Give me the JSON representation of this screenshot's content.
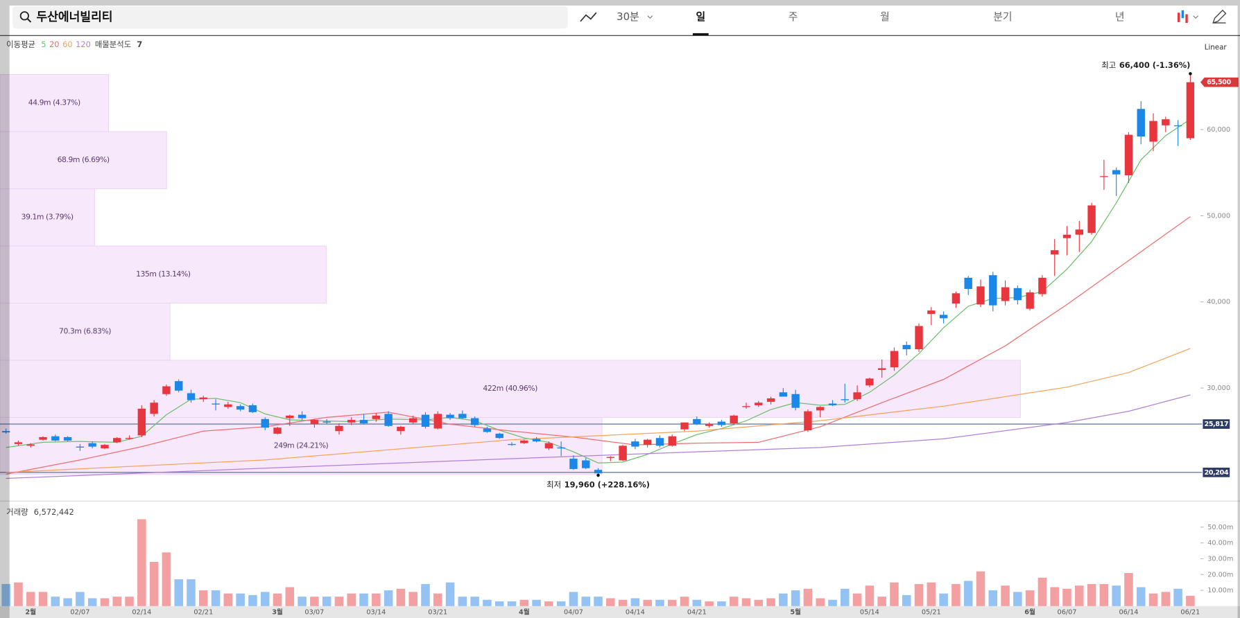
{
  "toolbar": {
    "search": "두산에너빌리티",
    "interval": "30분",
    "tabs": [
      "일",
      "주",
      "월",
      "분기",
      "년"
    ],
    "active_tab": 0
  },
  "chart_data": {
    "type": "candlestick",
    "scale_mode": "Linear",
    "ylim": [
      17064,
      70826
    ],
    "yticks": [
      {
        "value": 30000,
        "label": "30,000"
      },
      {
        "value": 40000,
        "label": "40,000"
      },
      {
        "value": 50000,
        "label": "50,000"
      },
      {
        "value": 60000,
        "label": "60,000"
      }
    ],
    "grid": false,
    "up_color": "#e8363f",
    "down_color": "#1b87e6",
    "categories": [
      null,
      null,
      "2월",
      null,
      null,
      null,
      "02/07",
      null,
      null,
      null,
      null,
      "02/14",
      null,
      null,
      null,
      null,
      "02/21",
      null,
      null,
      null,
      null,
      null,
      "3월",
      null,
      null,
      "03/07",
      null,
      null,
      null,
      null,
      "03/14",
      null,
      null,
      null,
      null,
      "03/21",
      null,
      null,
      null,
      null,
      null,
      null,
      "4월",
      null,
      null,
      null,
      "04/07",
      null,
      null,
      null,
      null,
      "04/14",
      null,
      null,
      null,
      null,
      "04/21",
      null,
      null,
      null,
      null,
      null,
      null,
      null,
      "5월",
      null,
      null,
      null,
      null,
      null,
      "05/14",
      null,
      null,
      null,
      null,
      "05/21",
      null,
      null,
      null,
      null,
      null,
      null,
      null,
      "6월",
      null,
      null,
      "06/07",
      null,
      null,
      null,
      null,
      "06/14",
      null,
      null,
      null,
      null,
      "06/21"
    ],
    "open": [
      25000,
      23500,
      23300,
      24000,
      24400,
      24300,
      23200,
      23600,
      23000,
      23700,
      24100,
      24500,
      27000,
      29300,
      30800,
      29400,
      28700,
      28200,
      27800,
      27900,
      28000,
      26400,
      24700,
      26500,
      26900,
      25800,
      26100,
      25000,
      26000,
      26300,
      26400,
      27000,
      25000,
      26000,
      26900,
      25300,
      26900,
      27000,
      26500,
      25300,
      24700,
      23500,
      23600,
      24100,
      23000,
      23100,
      21800,
      21600,
      20500,
      21900,
      21600,
      23800,
      23400,
      24200,
      23300,
      25200,
      26400,
      25600,
      26100,
      25900,
      27800,
      28000,
      28400,
      29500,
      29300,
      25100,
      27400,
      28200,
      28700,
      28700,
      30300,
      32100,
      32400,
      35000,
      34500,
      38600,
      38500,
      39800,
      42800,
      39700,
      43100,
      40100,
      41600,
      39200,
      40900,
      45500,
      47400,
      47800,
      48000,
      54500,
      55300,
      54700,
      62400,
      58600,
      60500,
      60500,
      59000
    ],
    "high": [
      25300,
      23900,
      23600,
      24400,
      24600,
      24400,
      23500,
      23800,
      23500,
      24300,
      24500,
      28000,
      28600,
      30400,
      31000,
      29800,
      29100,
      28700,
      28400,
      28100,
      28200,
      26600,
      25500,
      26900,
      27300,
      26400,
      26400,
      25900,
      26600,
      27000,
      27100,
      27300,
      25600,
      26800,
      27200,
      27300,
      27100,
      27400,
      26700,
      25500,
      24800,
      23700,
      24000,
      24300,
      23800,
      23800,
      22200,
      21900,
      20700,
      22100,
      23400,
      24100,
      24100,
      24500,
      24600,
      26000,
      26700,
      26000,
      26300,
      26900,
      28300,
      28500,
      29000,
      30000,
      29800,
      27500,
      27900,
      28600,
      30500,
      30300,
      31200,
      33300,
      34700,
      35400,
      37500,
      39400,
      38900,
      41200,
      43000,
      42600,
      43500,
      42500,
      41900,
      41400,
      43100,
      47300,
      48800,
      49400,
      51500,
      56500,
      55600,
      59700,
      63300,
      61900,
      61500,
      61100,
      66400
    ],
    "low": [
      24700,
      23300,
      23100,
      23900,
      23800,
      23800,
      22700,
      23000,
      22900,
      23600,
      24000,
      24300,
      26700,
      29100,
      29500,
      28300,
      28400,
      27400,
      27600,
      27300,
      27100,
      25100,
      24600,
      25600,
      26300,
      25400,
      25800,
      24600,
      25700,
      25800,
      26100,
      25500,
      24600,
      25800,
      25300,
      25200,
      26300,
      26400,
      25500,
      24800,
      24100,
      23300,
      23500,
      23700,
      22800,
      22100,
      20500,
      20600,
      19960,
      21500,
      21500,
      22900,
      23100,
      23100,
      23200,
      25000,
      25700,
      25400,
      25500,
      25700,
      27600,
      27800,
      28100,
      29000,
      27400,
      24900,
      26600,
      27900,
      28300,
      28500,
      30100,
      31200,
      32000,
      33800,
      34200,
      37300,
      37500,
      39300,
      40800,
      39400,
      38900,
      39600,
      39700,
      39000,
      40600,
      43000,
      45400,
      45800,
      47800,
      53000,
      52300,
      53800,
      58300,
      57500,
      59700,
      58100,
      58800
    ],
    "close": [
      24850,
      23700,
      23450,
      24300,
      23900,
      23900,
      23150,
      23200,
      23400,
      24200,
      24200,
      27600,
      28300,
      30200,
      29700,
      28600,
      28900,
      28100,
      28100,
      27500,
      27200,
      25400,
      25400,
      26800,
      26500,
      26300,
      26050,
      25600,
      26300,
      25900,
      26800,
      25600,
      25500,
      26500,
      25500,
      27000,
      26500,
      26500,
      25700,
      24900,
      24200,
      23450,
      23900,
      23800,
      23600,
      23050,
      20600,
      20700,
      20100,
      22000,
      23300,
      23200,
      24000,
      23300,
      24400,
      26000,
      25800,
      25800,
      25700,
      26800,
      27900,
      28300,
      28800,
      29000,
      27700,
      27300,
      27800,
      28000,
      28600,
      29500,
      31100,
      32300,
      34300,
      34500,
      37200,
      39000,
      38100,
      41000,
      41500,
      41800,
      39600,
      41700,
      40200,
      41100,
      42800,
      46000,
      47800,
      48400,
      51200,
      54600,
      54800,
      59400,
      59200,
      61000,
      61200,
      60400,
      65500
    ],
    "ma_title": "이동평균",
    "moving_averages": [
      {
        "name": "5",
        "color": "#6cc06c",
        "x": [
          0,
          3,
          6,
          9,
          11,
          13,
          15,
          17,
          19,
          21,
          23,
          25,
          28,
          31,
          34,
          36,
          38,
          40,
          42,
          44,
          46,
          48,
          50,
          52,
          54,
          56,
          58,
          60,
          62,
          64,
          66,
          68,
          70,
          72,
          74,
          76,
          78,
          80,
          82,
          84,
          86,
          88,
          90,
          92,
          94,
          96
        ],
        "values": [
          23100,
          23700,
          23800,
          23700,
          24400,
          26900,
          28700,
          28800,
          28300,
          27000,
          26300,
          26200,
          26100,
          26400,
          26300,
          26600,
          26200,
          25100,
          24200,
          23700,
          22600,
          21300,
          21400,
          22300,
          23500,
          24600,
          25300,
          26200,
          27500,
          28300,
          28000,
          28100,
          29500,
          31500,
          34000,
          37000,
          39500,
          40400,
          40500,
          41200,
          43800,
          47000,
          51500,
          56500,
          59300,
          61200
        ]
      },
      {
        "name": "20",
        "color": "#ef6e6e",
        "x": [
          0,
          6,
          11,
          16,
          21,
          26,
          31,
          36,
          41,
          46,
          51,
          56,
          61,
          66,
          71,
          76,
          81,
          86,
          91,
          96
        ],
        "values": [
          20000,
          21650,
          23200,
          25000,
          25500,
          26600,
          27200,
          25800,
          25000,
          24300,
          23400,
          23600,
          23700,
          25500,
          28300,
          31000,
          34900,
          39700,
          44800,
          49900
        ]
      },
      {
        "name": "60",
        "color": "#f5a35b",
        "x": [
          0,
          21,
          41,
          56,
          66,
          76,
          86,
          91,
          96
        ],
        "values": [
          20200,
          21650,
          24000,
          25000,
          26200,
          27900,
          30100,
          31800,
          34600
        ]
      },
      {
        "name": "120",
        "color": "#b07fd8",
        "x": [
          0,
          21,
          41,
          56,
          66,
          76,
          86,
          91,
          96
        ],
        "values": [
          19500,
          20700,
          21800,
          22600,
          23100,
          24100,
          26000,
          27300,
          29200
        ]
      }
    ],
    "volume_profile": {
      "title": "매물분석도",
      "count": 7,
      "color": "#f7e8fc",
      "bins": [
        19960,
        26594,
        33229,
        39863,
        46497,
        53131,
        59766,
        66400
      ],
      "values": [
        249,
        422,
        70.3,
        135,
        39.1,
        68.9,
        44.9
      ],
      "value_labels": [
        "249m (24.21%)",
        "422m (40.96%)",
        "70.3m (6.83%)",
        "135m (13.14%)",
        "39.1m (3.79%)",
        "68.9m (6.69%)",
        "44.9m (4.37%)"
      ]
    },
    "price_lines": [
      {
        "value": 25817,
        "label": "25,817"
      },
      {
        "value": 20204,
        "label": "20,204"
      }
    ],
    "current_price": {
      "value": 65500,
      "label": "65,500"
    },
    "high_note": "최고",
    "high_text": "66,400 (-1.36%)",
    "low_note": "최저",
    "low_text": "19,960 (+228.16%)",
    "volume": {
      "title": "거래량",
      "readout": "6,572,442",
      "up_color": "#f3a0a3",
      "down_color": "#93c2f3",
      "ylim": [
        0,
        63.5
      ],
      "yticks": [
        {
          "value": 10,
          "label": "10.00m"
        },
        {
          "value": 20,
          "label": "20.00m"
        },
        {
          "value": 30,
          "label": "30.00m"
        },
        {
          "value": 40,
          "label": "40.00m"
        },
        {
          "value": 50,
          "label": "50.00m"
        }
      ],
      "values": [
        14,
        15,
        9,
        9,
        6,
        5,
        9,
        5,
        5,
        6,
        6,
        55,
        28,
        34,
        17,
        17,
        10,
        10,
        8,
        8,
        7,
        9,
        8,
        12,
        6,
        6,
        6,
        6,
        8,
        8,
        8,
        10,
        11,
        9,
        14,
        8,
        15,
        6,
        6,
        4,
        3,
        3,
        4,
        4,
        3,
        3,
        9,
        6,
        6,
        5,
        4,
        5,
        4,
        4,
        4,
        6,
        4,
        3,
        3,
        6,
        5,
        4,
        5,
        8,
        10,
        11,
        5,
        4,
        11,
        8,
        13,
        6,
        15,
        7,
        14,
        15,
        8,
        14,
        16,
        22,
        10,
        13,
        9,
        10,
        18,
        12,
        11,
        13,
        14,
        14,
        13,
        21,
        12,
        8,
        9,
        11,
        6.572442
      ]
    }
  }
}
